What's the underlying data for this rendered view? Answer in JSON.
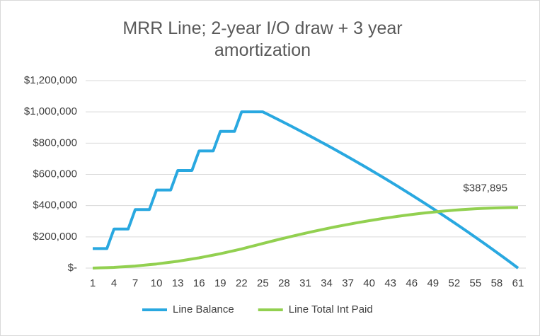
{
  "chart_data": {
    "type": "line",
    "title": "MRR Line; 2-year I/O draw + 3 year amortization",
    "x": [
      1,
      2,
      3,
      4,
      5,
      6,
      7,
      8,
      9,
      10,
      11,
      12,
      13,
      14,
      15,
      16,
      17,
      18,
      19,
      20,
      21,
      22,
      23,
      24,
      25,
      26,
      27,
      28,
      29,
      30,
      31,
      32,
      33,
      34,
      35,
      36,
      37,
      38,
      39,
      40,
      41,
      42,
      43,
      44,
      45,
      46,
      47,
      48,
      49,
      50,
      51,
      52,
      53,
      54,
      55,
      56,
      57,
      58,
      59,
      60,
      61
    ],
    "xlim": [
      1,
      61
    ],
    "xticks": [
      1,
      4,
      7,
      10,
      13,
      16,
      19,
      22,
      25,
      28,
      31,
      34,
      37,
      40,
      43,
      46,
      49,
      52,
      55,
      58,
      61
    ],
    "ylim": [
      0,
      1200000
    ],
    "yticks": [
      {
        "value": 0,
        "label": "$-"
      },
      {
        "value": 200000,
        "label": "$200,000"
      },
      {
        "value": 400000,
        "label": "$400,000"
      },
      {
        "value": 600000,
        "label": "$600,000"
      },
      {
        "value": 800000,
        "label": "$800,000"
      },
      {
        "value": 1000000,
        "label": "$1,000,000"
      },
      {
        "value": 1200000,
        "label": "$1,200,000"
      }
    ],
    "grid": true,
    "legend": "bottom",
    "series": [
      {
        "name": "Line Balance",
        "color": "#29a8e0",
        "values": [
          125000,
          125000,
          125000,
          250000,
          250000,
          250000,
          375000,
          375000,
          375000,
          500000,
          500000,
          500000,
          625000,
          625000,
          625000,
          750000,
          750000,
          750000,
          875000,
          875000,
          875000,
          1000000,
          1000000,
          1000000,
          1000000,
          977494,
          954725,
          931690,
          908387,
          884812,
          860962,
          836834,
          812424,
          787729,
          762746,
          737472,
          711903,
          686036,
          659867,
          633392,
          606609,
          579513,
          552101,
          524369,
          496314,
          467931,
          439217,
          410168,
          380780,
          351049,
          320972,
          290544,
          259761,
          228619,
          197113,
          165240,
          132995,
          100374,
          67372,
          33985,
          0
        ]
      },
      {
        "name": "Line Total Int Paid",
        "color": "#92d050",
        "values": [
          0,
          1458,
          2917,
          4375,
          7292,
          10208,
          13125,
          17500,
          21875,
          26250,
          32083,
          37917,
          43750,
          51042,
          58333,
          65625,
          74375,
          83125,
          91875,
          102083,
          112292,
          122500,
          134167,
          145833,
          157500,
          169167,
          180571,
          191709,
          202579,
          213177,
          223500,
          233545,
          243308,
          252786,
          261976,
          270875,
          279479,
          287785,
          295789,
          303487,
          310877,
          317954,
          324715,
          331156,
          337274,
          343064,
          348523,
          353647,
          358432,
          362874,
          366970,
          370715,
          374105,
          377136,
          379803,
          382103,
          384031,
          385583,
          386754,
          387540,
          387895
        ],
        "value_labels": [
          null,
          null,
          null,
          null,
          null,
          null,
          null,
          null,
          null,
          null,
          null,
          null,
          null,
          null,
          null,
          null,
          null,
          null,
          null,
          null,
          null,
          null,
          null,
          null,
          null,
          null,
          null,
          null,
          null,
          null,
          null,
          null,
          null,
          null,
          null,
          null,
          null,
          null,
          null,
          null,
          null,
          null,
          null,
          null,
          null,
          null,
          null,
          null,
          null,
          null,
          null,
          null,
          null,
          null,
          null,
          null,
          null,
          null,
          null,
          null,
          "$387,895"
        ]
      }
    ]
  }
}
